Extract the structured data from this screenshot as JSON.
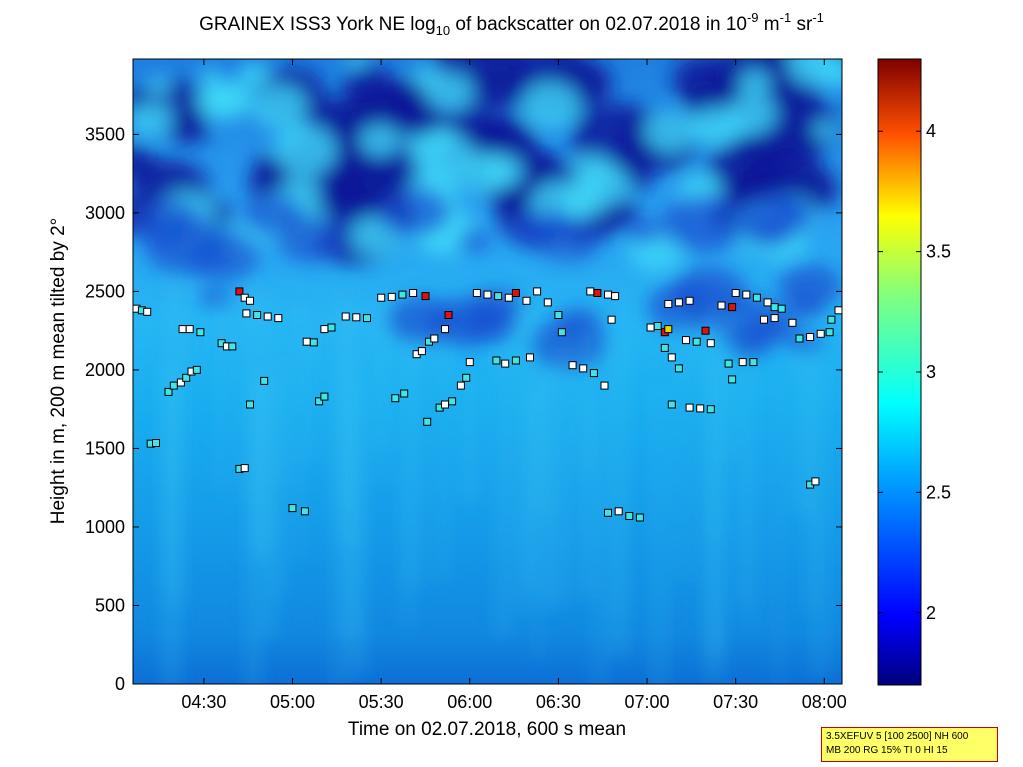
{
  "chart_data": {
    "type": "heatmap",
    "title_parts": {
      "main": "GRAINEX ISS3 York NE log",
      "sub": "10",
      "mid": " of backscatter on 02.07.2018 in 10",
      "exp1": "-9",
      "unit1": " m",
      "exp2": "-1",
      "unit2": " sr",
      "exp3": "-1"
    },
    "xlabel": "Time on 02.07.2018, 600 s mean",
    "ylabel": "Height in m, 200 m mean tilted by 2°",
    "x_ticks": [
      "04:30",
      "05:00",
      "05:30",
      "06:00",
      "06:30",
      "07:00",
      "07:30",
      "08:00"
    ],
    "x_tick_hours": [
      4.5,
      5.0,
      5.5,
      6.0,
      6.5,
      7.0,
      7.5,
      8.0
    ],
    "xlim_hours": [
      4.1,
      8.1
    ],
    "y_ticks": [
      0,
      500,
      1000,
      1500,
      2000,
      2500,
      3000,
      3500
    ],
    "ylim": [
      0,
      3980
    ],
    "colorbar": {
      "ticks": [
        "2",
        "2.5",
        "3",
        "3.5",
        "4"
      ],
      "tick_values": [
        2,
        2.5,
        3,
        3.5,
        4
      ],
      "range": [
        1.7,
        4.3
      ],
      "colormap": "jet"
    },
    "markers": [
      {
        "t": 4.12,
        "h": 2390,
        "c": "white"
      },
      {
        "t": 4.15,
        "h": 2380,
        "c": "cyan"
      },
      {
        "t": 4.18,
        "h": 2370,
        "c": "white"
      },
      {
        "t": 4.2,
        "h": 1530,
        "c": "cyan"
      },
      {
        "t": 4.23,
        "h": 1535,
        "c": "cyan"
      },
      {
        "t": 4.3,
        "h": 1860,
        "c": "cyan"
      },
      {
        "t": 4.33,
        "h": 1900,
        "c": "cyan"
      },
      {
        "t": 4.37,
        "h": 1920,
        "c": "white"
      },
      {
        "t": 4.4,
        "h": 1950,
        "c": "cyan"
      },
      {
        "t": 4.43,
        "h": 1990,
        "c": "white"
      },
      {
        "t": 4.46,
        "h": 2000,
        "c": "cyan"
      },
      {
        "t": 4.38,
        "h": 2260,
        "c": "white"
      },
      {
        "t": 4.42,
        "h": 2260,
        "c": "white"
      },
      {
        "t": 4.48,
        "h": 2240,
        "c": "cyan"
      },
      {
        "t": 4.6,
        "h": 2170,
        "c": "cyan"
      },
      {
        "t": 4.63,
        "h": 2150,
        "c": "white"
      },
      {
        "t": 4.66,
        "h": 2150,
        "c": "cyan"
      },
      {
        "t": 4.7,
        "h": 2500,
        "c": "red"
      },
      {
        "t": 4.73,
        "h": 2460,
        "c": "white"
      },
      {
        "t": 4.76,
        "h": 2440,
        "c": "white"
      },
      {
        "t": 4.74,
        "h": 2360,
        "c": "white"
      },
      {
        "t": 4.8,
        "h": 2350,
        "c": "cyan"
      },
      {
        "t": 4.86,
        "h": 2340,
        "c": "white"
      },
      {
        "t": 4.92,
        "h": 2330,
        "c": "white"
      },
      {
        "t": 4.7,
        "h": 1370,
        "c": "cyan"
      },
      {
        "t": 4.73,
        "h": 1375,
        "c": "white"
      },
      {
        "t": 4.76,
        "h": 1780,
        "c": "cyan"
      },
      {
        "t": 4.84,
        "h": 1930,
        "c": "cyan"
      },
      {
        "t": 5.0,
        "h": 1120,
        "c": "cyan"
      },
      {
        "t": 5.07,
        "h": 1100,
        "c": "cyan"
      },
      {
        "t": 5.08,
        "h": 2180,
        "c": "white"
      },
      {
        "t": 5.12,
        "h": 2175,
        "c": "cyan"
      },
      {
        "t": 5.15,
        "h": 1800,
        "c": "cyan"
      },
      {
        "t": 5.18,
        "h": 1830,
        "c": "cyan"
      },
      {
        "t": 5.18,
        "h": 2260,
        "c": "white"
      },
      {
        "t": 5.22,
        "h": 2270,
        "c": "cyan"
      },
      {
        "t": 5.3,
        "h": 2340,
        "c": "white"
      },
      {
        "t": 5.36,
        "h": 2335,
        "c": "white"
      },
      {
        "t": 5.42,
        "h": 2330,
        "c": "cyan"
      },
      {
        "t": 5.5,
        "h": 2460,
        "c": "white"
      },
      {
        "t": 5.56,
        "h": 2465,
        "c": "white"
      },
      {
        "t": 5.62,
        "h": 2480,
        "c": "cyan"
      },
      {
        "t": 5.68,
        "h": 2490,
        "c": "white"
      },
      {
        "t": 5.75,
        "h": 2470,
        "c": "red"
      },
      {
        "t": 5.58,
        "h": 1820,
        "c": "cyan"
      },
      {
        "t": 5.63,
        "h": 1850,
        "c": "cyan"
      },
      {
        "t": 5.7,
        "h": 2100,
        "c": "white"
      },
      {
        "t": 5.73,
        "h": 2120,
        "c": "white"
      },
      {
        "t": 5.77,
        "h": 2180,
        "c": "cyan"
      },
      {
        "t": 5.8,
        "h": 2200,
        "c": "white"
      },
      {
        "t": 5.76,
        "h": 1670,
        "c": "cyan"
      },
      {
        "t": 5.83,
        "h": 1760,
        "c": "cyan"
      },
      {
        "t": 5.86,
        "h": 1780,
        "c": "white"
      },
      {
        "t": 5.9,
        "h": 1800,
        "c": "cyan"
      },
      {
        "t": 5.86,
        "h": 2260,
        "c": "white"
      },
      {
        "t": 5.88,
        "h": 2350,
        "c": "red"
      },
      {
        "t": 5.95,
        "h": 1900,
        "c": "white"
      },
      {
        "t": 5.98,
        "h": 1950,
        "c": "cyan"
      },
      {
        "t": 6.0,
        "h": 2050,
        "c": "white"
      },
      {
        "t": 6.04,
        "h": 2490,
        "c": "white"
      },
      {
        "t": 6.1,
        "h": 2480,
        "c": "white"
      },
      {
        "t": 6.16,
        "h": 2470,
        "c": "cyan"
      },
      {
        "t": 6.22,
        "h": 2460,
        "c": "white"
      },
      {
        "t": 6.26,
        "h": 2490,
        "c": "red"
      },
      {
        "t": 6.32,
        "h": 2440,
        "c": "white"
      },
      {
        "t": 6.15,
        "h": 2060,
        "c": "cyan"
      },
      {
        "t": 6.2,
        "h": 2040,
        "c": "white"
      },
      {
        "t": 6.26,
        "h": 2060,
        "c": "cyan"
      },
      {
        "t": 6.34,
        "h": 2080,
        "c": "white"
      },
      {
        "t": 6.38,
        "h": 2500,
        "c": "white"
      },
      {
        "t": 6.44,
        "h": 2430,
        "c": "white"
      },
      {
        "t": 6.5,
        "h": 2350,
        "c": "cyan"
      },
      {
        "t": 6.52,
        "h": 2240,
        "c": "cyan"
      },
      {
        "t": 6.58,
        "h": 2030,
        "c": "white"
      },
      {
        "t": 6.64,
        "h": 2010,
        "c": "white"
      },
      {
        "t": 6.7,
        "h": 1980,
        "c": "cyan"
      },
      {
        "t": 6.76,
        "h": 1900,
        "c": "white"
      },
      {
        "t": 6.68,
        "h": 2500,
        "c": "white"
      },
      {
        "t": 6.72,
        "h": 2490,
        "c": "red"
      },
      {
        "t": 6.78,
        "h": 2480,
        "c": "white"
      },
      {
        "t": 6.82,
        "h": 2470,
        "c": "white"
      },
      {
        "t": 6.8,
        "h": 2320,
        "c": "white"
      },
      {
        "t": 6.78,
        "h": 1090,
        "c": "cyan"
      },
      {
        "t": 6.84,
        "h": 1100,
        "c": "white"
      },
      {
        "t": 6.9,
        "h": 1070,
        "c": "cyan"
      },
      {
        "t": 6.96,
        "h": 1060,
        "c": "cyan"
      },
      {
        "t": 7.02,
        "h": 2270,
        "c": "white"
      },
      {
        "t": 7.06,
        "h": 2280,
        "c": "cyan"
      },
      {
        "t": 7.1,
        "h": 2240,
        "c": "red"
      },
      {
        "t": 7.12,
        "h": 2260,
        "c": "yellow"
      },
      {
        "t": 7.12,
        "h": 2420,
        "c": "white"
      },
      {
        "t": 7.18,
        "h": 2430,
        "c": "white"
      },
      {
        "t": 7.24,
        "h": 2440,
        "c": "white"
      },
      {
        "t": 7.1,
        "h": 2140,
        "c": "cyan"
      },
      {
        "t": 7.14,
        "h": 2080,
        "c": "white"
      },
      {
        "t": 7.18,
        "h": 2010,
        "c": "cyan"
      },
      {
        "t": 7.14,
        "h": 1780,
        "c": "cyan"
      },
      {
        "t": 7.22,
        "h": 2190,
        "c": "white"
      },
      {
        "t": 7.28,
        "h": 2180,
        "c": "cyan"
      },
      {
        "t": 7.33,
        "h": 2250,
        "c": "red"
      },
      {
        "t": 7.36,
        "h": 2170,
        "c": "white"
      },
      {
        "t": 7.24,
        "h": 1760,
        "c": "white"
      },
      {
        "t": 7.3,
        "h": 1755,
        "c": "white"
      },
      {
        "t": 7.36,
        "h": 1750,
        "c": "cyan"
      },
      {
        "t": 7.42,
        "h": 2410,
        "c": "white"
      },
      {
        "t": 7.48,
        "h": 2400,
        "c": "red"
      },
      {
        "t": 7.5,
        "h": 2490,
        "c": "white"
      },
      {
        "t": 7.56,
        "h": 2480,
        "c": "white"
      },
      {
        "t": 7.62,
        "h": 2460,
        "c": "cyan"
      },
      {
        "t": 7.68,
        "h": 2430,
        "c": "white"
      },
      {
        "t": 7.72,
        "h": 2400,
        "c": "cyan"
      },
      {
        "t": 7.46,
        "h": 2040,
        "c": "cyan"
      },
      {
        "t": 7.48,
        "h": 1940,
        "c": "cyan"
      },
      {
        "t": 7.54,
        "h": 2050,
        "c": "white"
      },
      {
        "t": 7.6,
        "h": 2050,
        "c": "cyan"
      },
      {
        "t": 7.66,
        "h": 2320,
        "c": "white"
      },
      {
        "t": 7.72,
        "h": 2330,
        "c": "white"
      },
      {
        "t": 7.76,
        "h": 2390,
        "c": "cyan"
      },
      {
        "t": 7.82,
        "h": 2300,
        "c": "white"
      },
      {
        "t": 7.86,
        "h": 2200,
        "c": "cyan"
      },
      {
        "t": 7.92,
        "h": 2210,
        "c": "white"
      },
      {
        "t": 7.98,
        "h": 2230,
        "c": "white"
      },
      {
        "t": 8.03,
        "h": 2240,
        "c": "cyan"
      },
      {
        "t": 8.04,
        "h": 2320,
        "c": "cyan"
      },
      {
        "t": 8.08,
        "h": 2380,
        "c": "white"
      },
      {
        "t": 7.92,
        "h": 1270,
        "c": "cyan"
      },
      {
        "t": 7.95,
        "h": 1290,
        "c": "white"
      }
    ]
  },
  "infobox": {
    "line1": "3.5XEFUV 5 [100 2500] NH 600",
    "line2": "MB 200 RG 15% TI 0 HI 15"
  }
}
